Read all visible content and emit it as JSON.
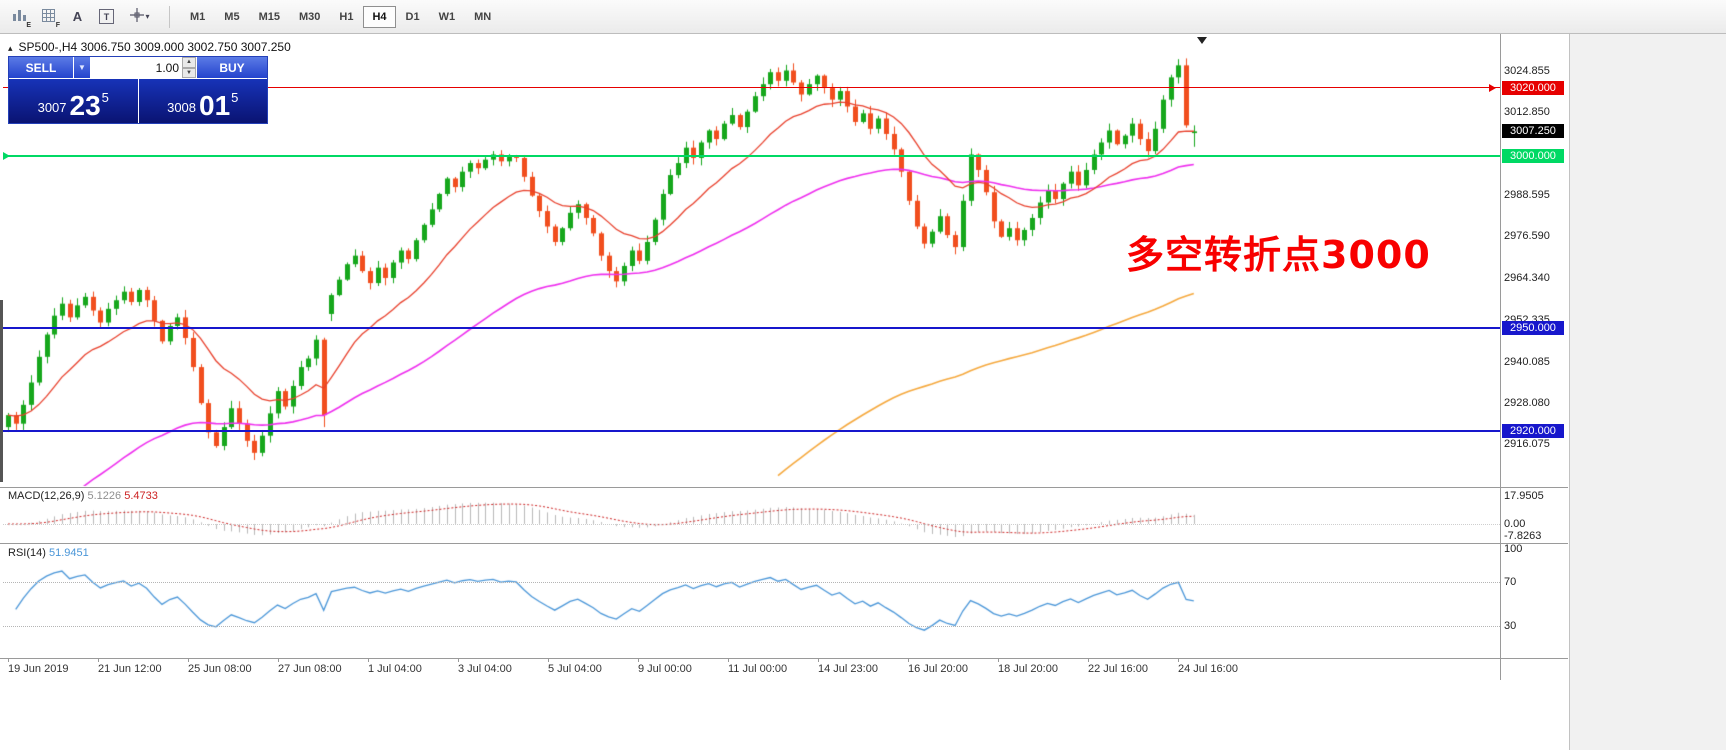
{
  "toolbar": {
    "icon_labels": {
      "charts_sub": "E",
      "grid_sub": "F",
      "a_tool": "A",
      "t_tool": "T"
    },
    "timeframes": [
      "M1",
      "M5",
      "M15",
      "M30",
      "H1",
      "H4",
      "D1",
      "W1",
      "MN"
    ],
    "active_timeframe": "H4"
  },
  "trade_panel": {
    "sell_label": "SELL",
    "buy_label": "BUY",
    "volume": "1.00",
    "sell_price_main": "3007",
    "sell_price_pips": "23",
    "sell_price_point": "5",
    "buy_price_main": "3008",
    "buy_price_pips": "01",
    "buy_price_point": "5"
  },
  "chart_data": {
    "type": "candlestick",
    "symbol": "SP500-",
    "timeframe": "H4",
    "title": "SP500-,H4  3006.750 3009.000 3002.750 3007.250",
    "ohlc_display": {
      "open": "3006.750",
      "high": "3009.000",
      "low": "3002.750",
      "close": "3007.250"
    },
    "colors": {
      "up": "#16a71c",
      "down": "#f14e1e",
      "macd_hist": "#b9b9b9",
      "macd_signal": "#cc2222",
      "rsi": "#4a96d8"
    },
    "price_axis_ticks": [
      "3024.855",
      "3012.850",
      "2988.595",
      "2976.590",
      "2964.340",
      "2952.335",
      "2940.085",
      "2928.080",
      "2916.075"
    ],
    "levels": [
      {
        "price": 3020.0,
        "label": "3020.000",
        "color": "#e60000",
        "width": 1,
        "arrow": "right"
      },
      {
        "price": 3000.0,
        "label": "3000.000",
        "color": "#00d964",
        "width": 2,
        "arrow": "left"
      },
      {
        "price": 2950.0,
        "label": "2950.000",
        "color": "#1717cc",
        "width": 2,
        "arrow": "none"
      },
      {
        "price": 2920.0,
        "label": "2920.000",
        "color": "#1717cc",
        "width": 2,
        "arrow": "none"
      }
    ],
    "current_price": {
      "value": 3007.25,
      "label": "3007.250"
    },
    "time_axis": [
      "19 Jun 2019",
      "21 Jun 12:00",
      "25 Jun 08:00",
      "27 Jun 08:00",
      "1 Jul 04:00",
      "3 Jul 04:00",
      "5 Jul 04:00",
      "9 Jul 00:00",
      "11 Jul 00:00",
      "14 Jul 23:00",
      "16 Jul 20:00",
      "18 Jul 20:00",
      "22 Jul 16:00",
      "24 Jul 16:00"
    ],
    "annotation": {
      "text": "多空转折点3000",
      "color": "#f80000"
    },
    "candles": {
      "interval": "H4",
      "closes": [
        2924.5,
        2922.0,
        2927.5,
        2934.0,
        2941.5,
        2948.0,
        2953.5,
        2957.0,
        2953.0,
        2956.5,
        2959.0,
        2955.0,
        2951.5,
        2955.5,
        2958.0,
        2960.5,
        2957.5,
        2961.0,
        2958.0,
        2952.0,
        2946.0,
        2950.5,
        2953.0,
        2947.0,
        2938.5,
        2928.0,
        2919.5,
        2915.5,
        2921.0,
        2926.5,
        2922.0,
        2917.0,
        2913.5,
        2918.5,
        2925.0,
        2931.5,
        2927.0,
        2933.0,
        2938.5,
        2941.0,
        2946.5,
        2924.5,
        2959.5,
        2964.0,
        2968.5,
        2971.0,
        2966.5,
        2963.0,
        2967.5,
        2964.5,
        2969.0,
        2972.5,
        2970.0,
        2975.5,
        2980.0,
        2984.5,
        2989.0,
        2993.5,
        2991.0,
        2995.5,
        2998.0,
        2996.5,
        2999.0,
        3000.5,
        2998.5,
        3000.0,
        2999.5,
        2994.0,
        2988.5,
        2984.0,
        2979.5,
        2975.0,
        2979.0,
        2983.5,
        2986.0,
        2982.0,
        2977.5,
        2971.0,
        2966.5,
        2963.5,
        2968.0,
        2972.5,
        2969.5,
        2975.0,
        2981.5,
        2989.0,
        2994.5,
        2998.0,
        3002.5,
        2999.5,
        3004.0,
        3007.5,
        3005.0,
        3009.5,
        3012.0,
        3008.5,
        3013.0,
        3017.5,
        3021.0,
        3024.5,
        3022.0,
        3025.0,
        3021.5,
        3018.0,
        3021.0,
        3023.5,
        3020.0,
        3016.5,
        3019.0,
        3014.5,
        3010.0,
        3012.5,
        3008.0,
        3011.0,
        3006.5,
        3002.0,
        2995.5,
        2987.0,
        2979.5,
        2974.5,
        2978.0,
        2982.5,
        2977.0,
        2973.5,
        2987.0,
        3000.5,
        2996.0,
        2989.5,
        2981.0,
        2976.5,
        2979.0,
        2975.5,
        2978.5,
        2982.0,
        2986.5,
        2990.0,
        2987.5,
        2992.0,
        2995.5,
        2991.5,
        2996.0,
        3000.5,
        3004.0,
        3007.5,
        3003.5,
        3006.0,
        3009.5,
        3005.0,
        3001.5,
        3008.0,
        3016.5,
        3023.0,
        3026.5,
        3009.0,
        3007.25
      ],
      "open_overrides": {
        "0": 2921.0,
        "42": 2954.0,
        "154": 3006.75
      },
      "high_overrides": {
        "152": 3028.3,
        "154": 3009.0
      },
      "low_overrides": {
        "41": 2921.0,
        "154": 3002.75
      }
    },
    "moving_averages": [
      {
        "name": "fast",
        "color": "#e8402c",
        "period": 16,
        "seed": null,
        "start_index": 0
      },
      {
        "name": "mid",
        "color": "#ee2fee",
        "period": 60,
        "seed": 2886,
        "start_index": 0
      },
      {
        "name": "slow",
        "color": "#f5a93f",
        "period": 127,
        "seed": 2905,
        "start_index": 100
      }
    ],
    "macd": {
      "label": "MACD(12,26,9)",
      "value_main": "5.1226",
      "value_signal": "5.4733",
      "axis": [
        "17.9505",
        "0.00",
        "-7.8263"
      ],
      "params": [
        12,
        26,
        9
      ]
    },
    "rsi": {
      "label": "RSI(14)",
      "value": "51.9451",
      "levels": [
        100,
        70,
        30
      ],
      "period": 14
    }
  }
}
